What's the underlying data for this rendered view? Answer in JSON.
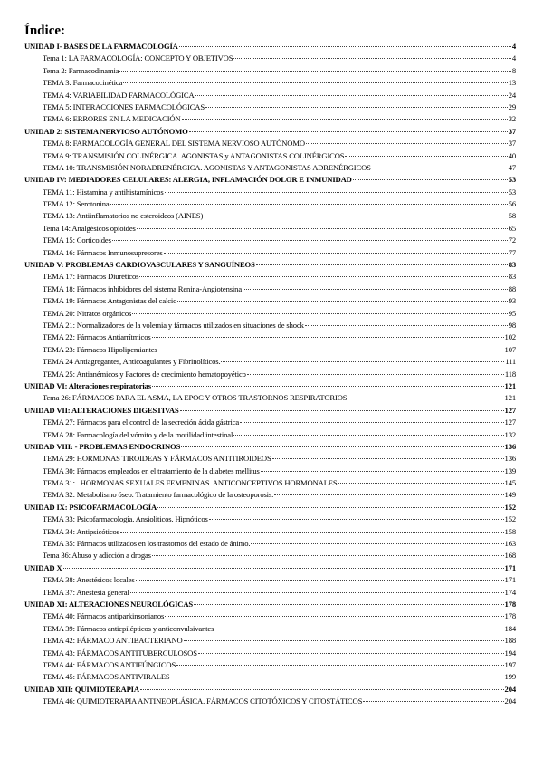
{
  "title": "Índice:",
  "entries": [
    {
      "type": "unit",
      "label": "UNIDAD I- BASES DE LA FARMACOLOGÍA",
      "page": "4"
    },
    {
      "type": "tema",
      "label": "Tema 1: LA FARMACOLOGÍA: CONCEPTO Y OBJETIVOS",
      "page": "4"
    },
    {
      "type": "tema",
      "label": "Tema 2: Farmacodinamia",
      "page": "8"
    },
    {
      "type": "tema",
      "label": "TEMA 3: Farmacocinética",
      "page": "13"
    },
    {
      "type": "tema",
      "label": "TEMA 4:  VARIABILIDAD FARMACOLÓGICA",
      "page": "24"
    },
    {
      "type": "tema",
      "label": "TEMA 5: INTERACCIONES FARMACOLÓGICAS",
      "page": "29"
    },
    {
      "type": "tema",
      "label": "TEMA 6: ERRORES EN LA MEDICACIÓN",
      "page": "32"
    },
    {
      "type": "unit",
      "label": "UNIDAD 2: SISTEMA NERVIOSO AUTÓNOMO",
      "page": "37"
    },
    {
      "type": "tema",
      "label": "TEMA 8: FARMACOLOGÍA GENERAL DEL SISTEMA NERVIOSO AUTÓNOMO",
      "page": "37"
    },
    {
      "type": "tema",
      "label": "TEMA 9: TRANSMISIÓN COLINÉRGICA. AGONISTAS y ANTAGONISTAS COLINÉRGICOS",
      "page": "40"
    },
    {
      "type": "tema",
      "label": "TEMA 10: TRANSMISIÓN NORADRENÉRGICA. AGONISTAS Y ANTAGONISTAS ADRENÉRGICOS",
      "page": "47"
    },
    {
      "type": "unit",
      "label": "UNIDAD IV: MEDIADORES CELULARES: ALERGIA, INFLAMACIÓN DOLOR E INMUNIDAD",
      "page": "53"
    },
    {
      "type": "tema",
      "label": "TEMA 11: Histamina y antihistamínicos",
      "page": "53"
    },
    {
      "type": "tema",
      "label": "TEMA 12: Serotonina",
      "page": "56"
    },
    {
      "type": "tema",
      "label": "TEMA 13: Antiinflamatorios no esteroideos (AINES)",
      "page": "58"
    },
    {
      "type": "tema",
      "label": "Tema 14: Analgésicos opioides",
      "page": "65"
    },
    {
      "type": "tema",
      "label": "TEMA 15: Corticoides",
      "page": "72"
    },
    {
      "type": "tema",
      "label": "TEMA 16: Fármacos Inmunosupresores",
      "page": "77"
    },
    {
      "type": "unit",
      "label": "UNIDAD V: PROBLEMAS CARDIOVASCULARES Y SANGUÍNEOS",
      "page": "83"
    },
    {
      "type": "tema",
      "label": "TEMA 17: Fármacos Diuréticos",
      "page": "83"
    },
    {
      "type": "tema",
      "label": "TEMA 18: Fármacos inhibidores del sistema Renina-Angiotensina",
      "page": "88"
    },
    {
      "type": "tema",
      "label": "TEMA 19: Fármacos Antagonistas del calcio",
      "page": "93"
    },
    {
      "type": "tema",
      "label": "TEMA 20: Nitratos orgánicos",
      "page": "95"
    },
    {
      "type": "tema",
      "label": "TEMA 21: Normalizadores de la volemia y fármacos utilizados en situaciones de shock",
      "page": "98"
    },
    {
      "type": "tema",
      "label": "TEMA 22: Fármacos Antiarrítmicos",
      "page": "102"
    },
    {
      "type": "tema",
      "label": "TEMA 23: Fármacos Hipolipemiantes",
      "page": "107"
    },
    {
      "type": "tema",
      "label": "TEMA 24 Antiagregantes, Anticoagulantes y Fibrinolíticos.",
      "page": "111"
    },
    {
      "type": "tema",
      "label": "TEMA 25: Antianémicos y Factores de crecimiento hematopoyético",
      "page": "118"
    },
    {
      "type": "unit",
      "label": "UNIDAD VI: Alteraciones respiratorias",
      "page": "121"
    },
    {
      "type": "tema",
      "label": "Tema 26: FÁRMACOS PARA EL ASMA, LA EPOC Y OTROS TRASTORNOS RESPIRATORIOS",
      "page": "121"
    },
    {
      "type": "unit",
      "label": "UNIDAD VII: ALTERACIONES DIGESTIVAS",
      "page": "127"
    },
    {
      "type": "tema",
      "label": "TEMA 27: Fármacos para el control de la secreción ácida gástrica",
      "page": "127"
    },
    {
      "type": "tema",
      "label": "TEMA 28: Farmacología del vómito y de la motilidad intestinal",
      "page": "132"
    },
    {
      "type": "unit",
      "label": "UNIDAD VIII: - PROBLEMAS ENDOCRINOS",
      "page": "136"
    },
    {
      "type": "tema",
      "label": "TEMA 29: HORMONAS TIROIDEAS Y FÁRMACOS ANTITIROIDEOS",
      "page": "136"
    },
    {
      "type": "tema",
      "label": "TEMA 30: Fármacos empleados en el tratamiento de la diabetes mellitus",
      "page": "139"
    },
    {
      "type": "tema",
      "label": "TEMA 31: . HORMONAS SEXUALES FEMENINAS. ANTICONCEPTIVOS HORMONALES",
      "page": "145"
    },
    {
      "type": "tema",
      "label": "TEMA 32:  Metabolismo óseo. Tratamiento farmacológico de la osteoporosis.",
      "page": "149"
    },
    {
      "type": "unit",
      "label": "UNIDAD IX: PSICOFARMACOLOGÍA",
      "page": "152"
    },
    {
      "type": "tema",
      "label": "TEMA 33: Psicofarmacología. Ansiolíticos. Hipnóticos",
      "page": "152"
    },
    {
      "type": "tema",
      "label": "TEMA 34: Antipsicóticos",
      "page": "158"
    },
    {
      "type": "tema",
      "label": "TEMA 35: Fármacos utilizados en los trastornos del estado de ánimo.",
      "page": "163"
    },
    {
      "type": "tema",
      "label": "Tema 36: Abuso y adicción a drogas",
      "page": "168"
    },
    {
      "type": "unit",
      "label": "UNIDAD X",
      "page": "171"
    },
    {
      "type": "tema",
      "label": "TEMA 38: Anestésicos locales",
      "page": "171"
    },
    {
      "type": "tema",
      "label": "TEMA 37: Anestesia general",
      "page": "174"
    },
    {
      "type": "unit",
      "label": "UNIDAD XI: ALTERACIONES NEUROLÓGICAS",
      "page": "178"
    },
    {
      "type": "tema",
      "label": "TEMA 40: Fármacos antiparkinsonianos",
      "page": "178"
    },
    {
      "type": "tema",
      "label": "TEMA 39: Fármacos antiepilépticos y anticonvulsivantes",
      "page": "184"
    },
    {
      "type": "tema",
      "label": "TEMA 42: FÁRMACO ANTIBACTERIANO",
      "page": "188"
    },
    {
      "type": "tema",
      "label": "TEMA 43: FÁRMACOS ANTITUBERCULOSOS",
      "page": "194"
    },
    {
      "type": "tema",
      "label": "TEMA 44: FÁRMACOS ANTIFÚNGICOS",
      "page": "197"
    },
    {
      "type": "tema",
      "label": "TEMA 45: FÁRMACOS ANTIVIRALES",
      "page": "199"
    },
    {
      "type": "unit",
      "label": "UNIDAD XIII: QUIMIOTERAPIA",
      "page": "204"
    },
    {
      "type": "tema",
      "label": "TEMA 46: QUIMIOTERAPIA ANTINEOPLÁSICA. FÁRMACOS CITOTÓXICOS Y CITOSTÁTICOS",
      "page": "204"
    }
  ]
}
